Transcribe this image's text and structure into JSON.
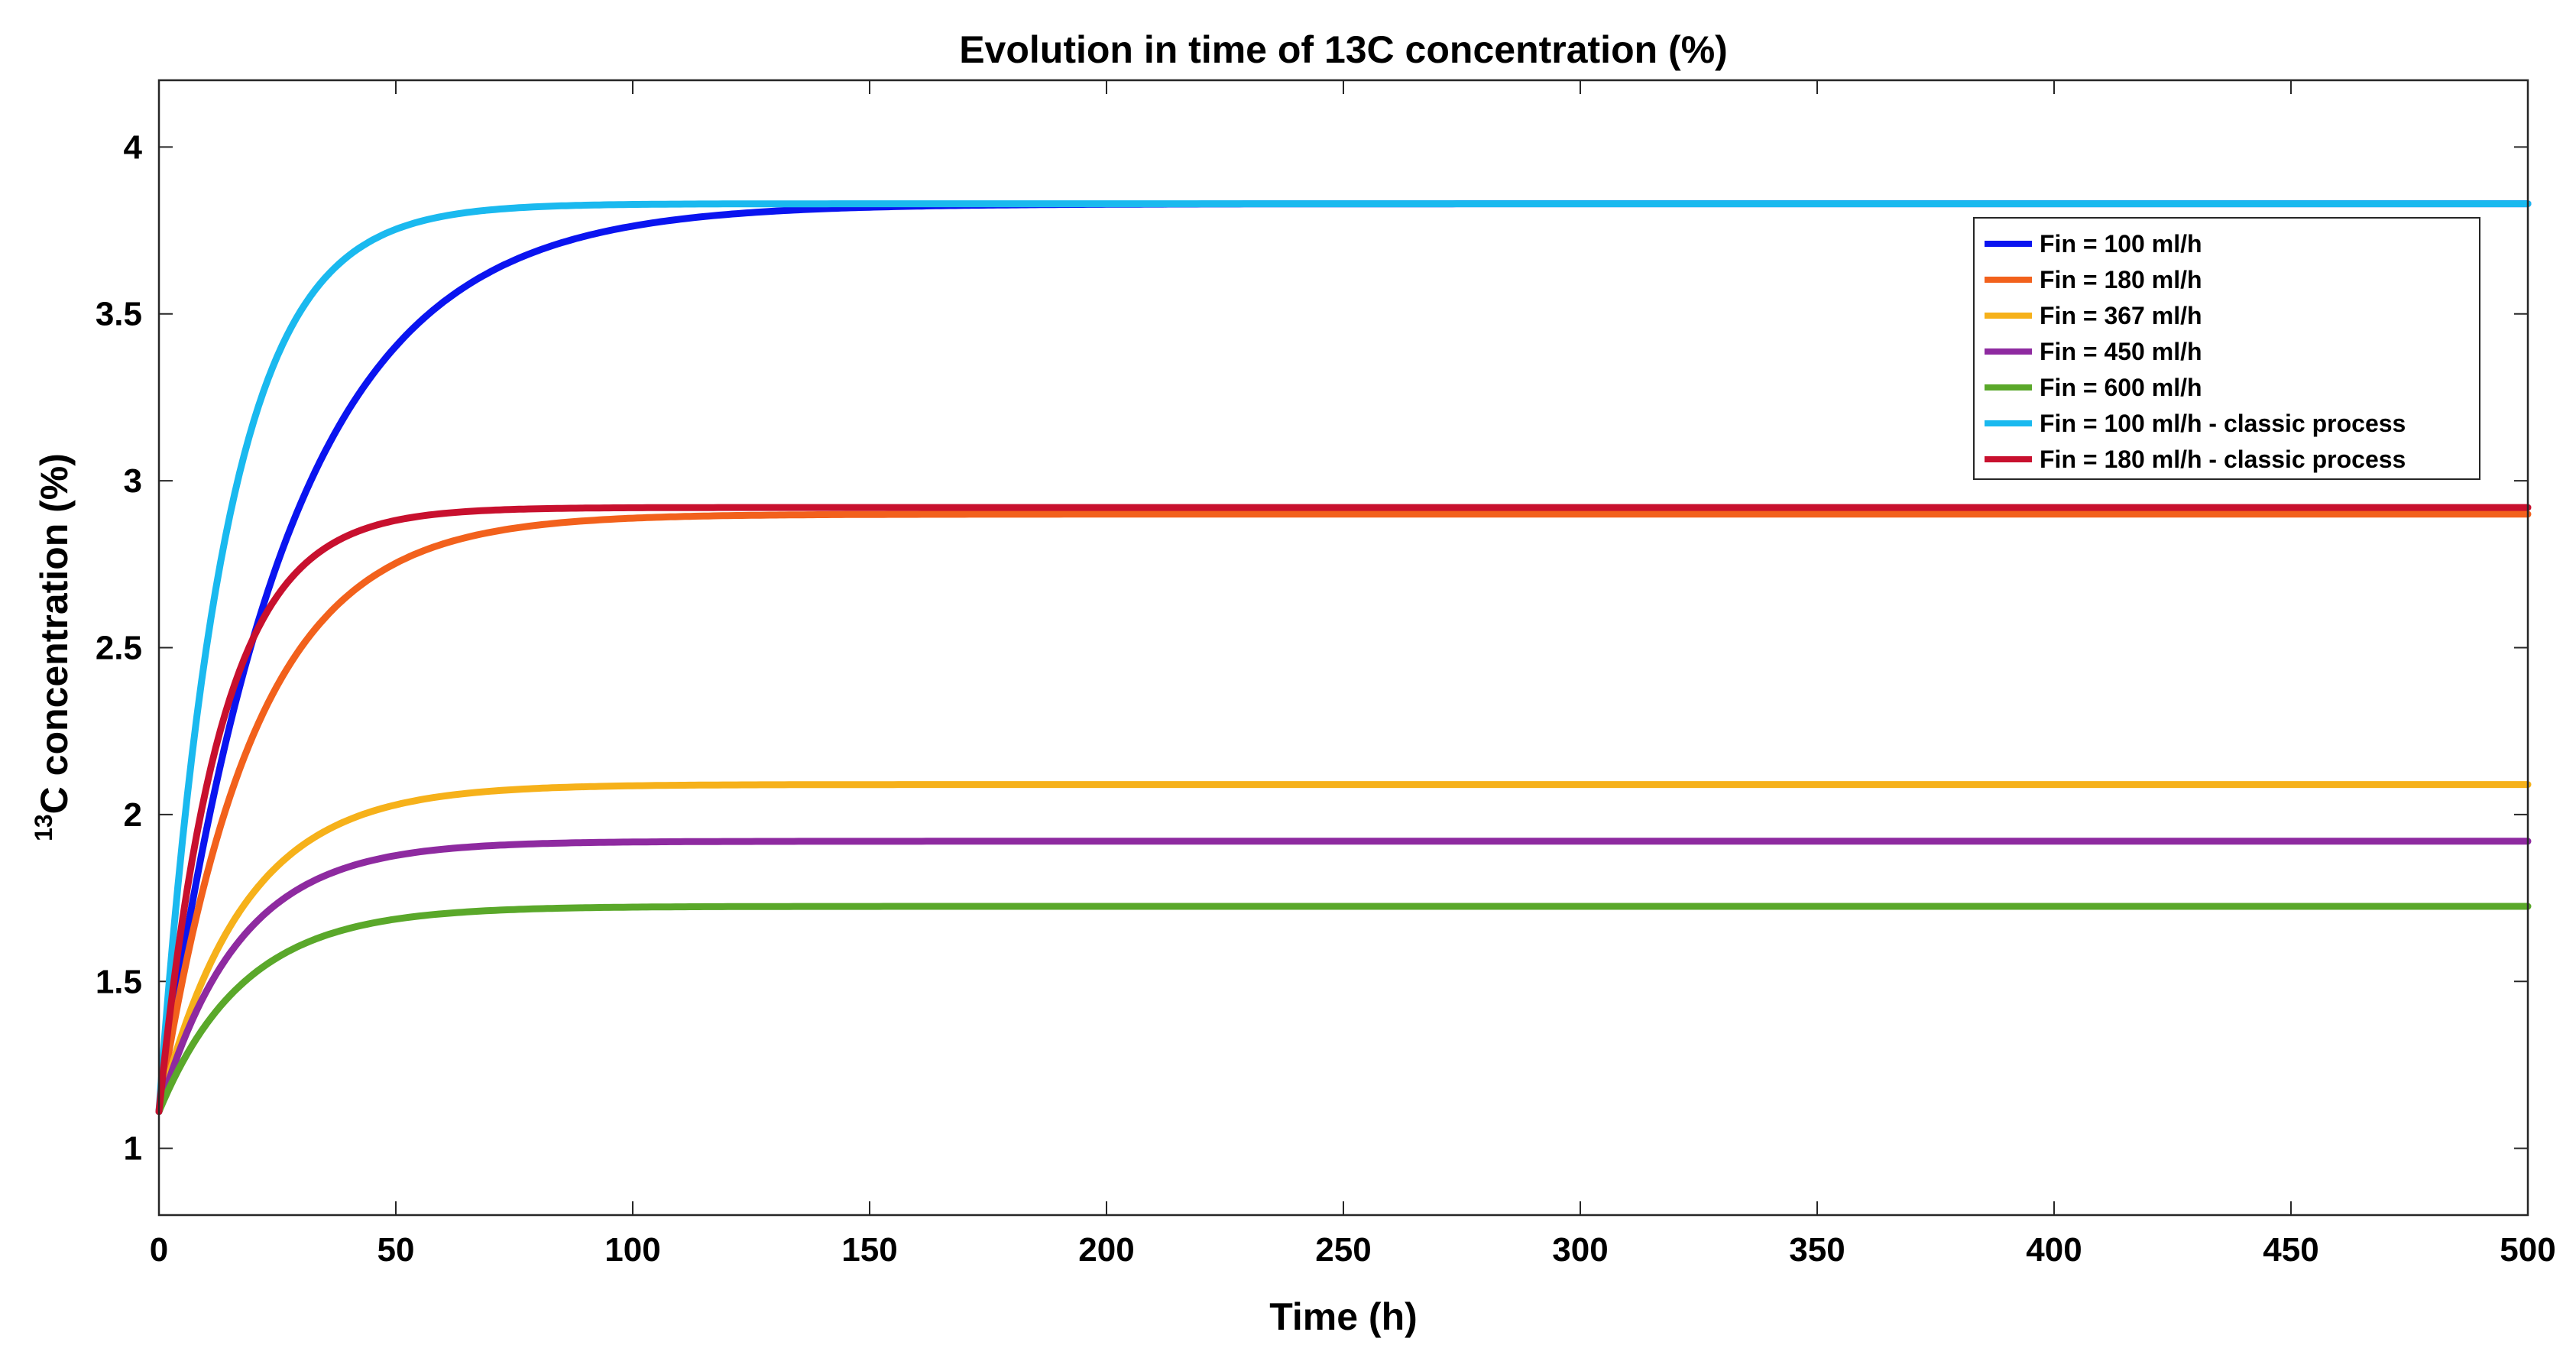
{
  "chart_data": {
    "type": "line",
    "title": "Evolution in time of 13C concentration (%)",
    "xlabel": "Time (h)",
    "ylabel_superscript": "13",
    "ylabel": "C concentration (%)",
    "xlim": [
      0,
      500
    ],
    "ylim": [
      0.8,
      4.2
    ],
    "xticks": [
      0,
      50,
      100,
      150,
      200,
      250,
      300,
      350,
      400,
      450,
      500
    ],
    "yticks": [
      1,
      1.5,
      2,
      2.5,
      3,
      3.5,
      4
    ],
    "grid": false,
    "legend_position": "top-right",
    "initial_value": 1.11,
    "series": [
      {
        "name": "Fin = 100 ml/h",
        "color": "#0a14f0",
        "final": 3.83,
        "tau": 27
      },
      {
        "name": "Fin = 180 ml/h",
        "color": "#f2611c",
        "final": 2.9,
        "tau": 20
      },
      {
        "name": "Fin = 367 ml/h",
        "color": "#f6b11a",
        "final": 2.09,
        "tau": 18
      },
      {
        "name": "Fin = 450 ml/h",
        "color": "#8e2aa0",
        "final": 1.92,
        "tau": 17
      },
      {
        "name": "Fin = 600 ml/h",
        "color": "#5aa82a",
        "final": 1.725,
        "tau": 18
      },
      {
        "name": "Fin = 100 ml/h - classic process",
        "color": "#1ab9ef",
        "final": 3.83,
        "tau": 14
      },
      {
        "name": "Fin = 180 ml/h - classic process",
        "color": "#c8102e",
        "final": 2.92,
        "tau": 13
      }
    ]
  }
}
